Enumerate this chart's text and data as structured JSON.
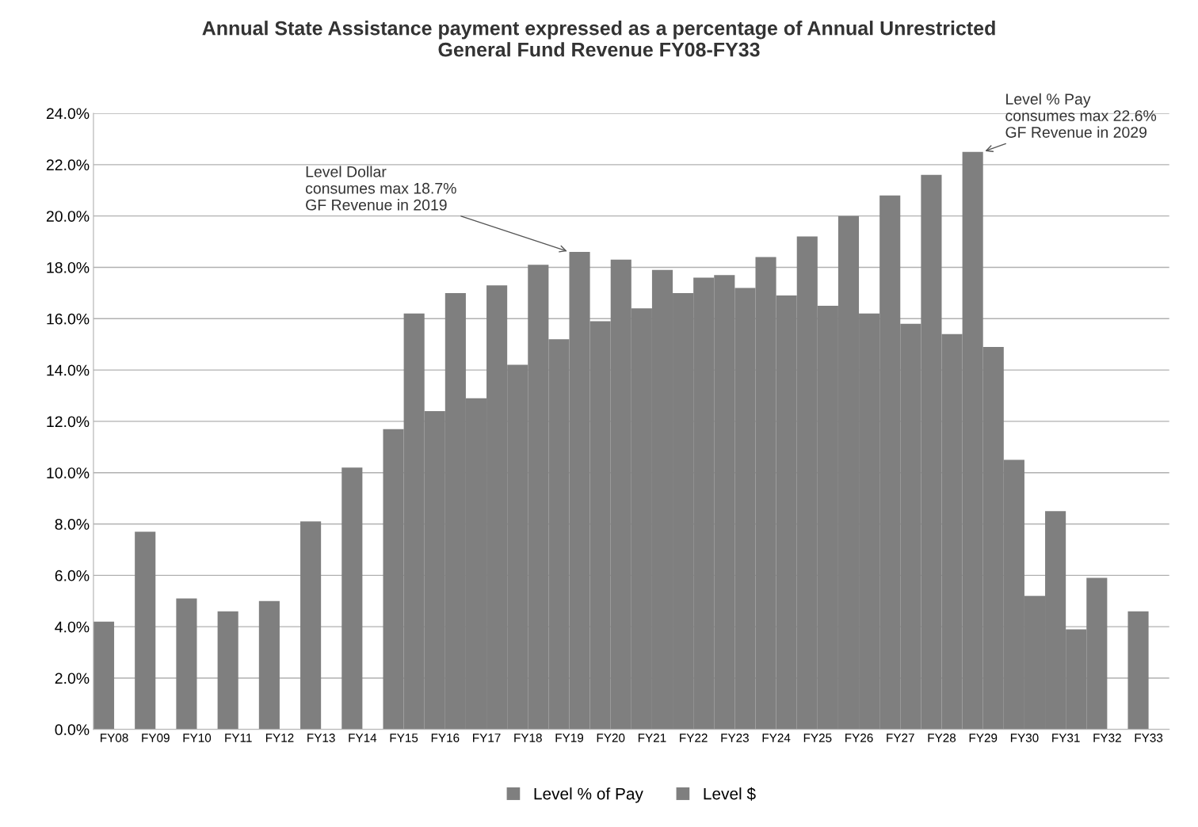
{
  "chart_data": {
    "type": "bar",
    "title": "Annual State Assistance payment expressed as a percentage of Annual Unrestricted\nGeneral Fund Revenue FY08-FY33",
    "categories": [
      "FY08",
      "FY09",
      "FY10",
      "FY11",
      "FY12",
      "FY13",
      "FY14",
      "FY15",
      "FY16",
      "FY17",
      "FY18",
      "FY19",
      "FY20",
      "FY21",
      "FY22",
      "FY23",
      "FY24",
      "FY25",
      "FY26",
      "FY27",
      "FY28",
      "FY29",
      "FY30",
      "FY31",
      "FY32",
      "FY33"
    ],
    "series": [
      {
        "name": "Level % of Pay",
        "color": "#7f7f7f",
        "values": [
          4.2,
          7.7,
          5.1,
          4.6,
          5.0,
          8.1,
          10.2,
          11.7,
          12.4,
          12.9,
          14.2,
          15.2,
          15.9,
          16.4,
          17.0,
          17.7,
          18.4,
          19.2,
          20.0,
          20.8,
          21.6,
          22.5,
          10.5,
          8.5,
          5.9,
          4.6
        ]
      },
      {
        "name": "Level $",
        "color": "#7f7f7f",
        "values": [
          null,
          null,
          null,
          null,
          null,
          null,
          null,
          16.2,
          17.0,
          17.3,
          18.1,
          18.6,
          18.3,
          17.9,
          17.6,
          17.2,
          16.9,
          16.5,
          16.2,
          15.8,
          15.4,
          14.9,
          5.2,
          3.9,
          null,
          null
        ]
      }
    ],
    "ylim": [
      0,
      24
    ],
    "yticks": [
      {
        "value": 0,
        "label": "0.0%"
      },
      {
        "value": 2,
        "label": "2.0%"
      },
      {
        "value": 4,
        "label": "4.0%"
      },
      {
        "value": 6,
        "label": "6.0%"
      },
      {
        "value": 8,
        "label": "8.0%"
      },
      {
        "value": 10,
        "label": "10.0%"
      },
      {
        "value": 12,
        "label": "12.0%"
      },
      {
        "value": 14,
        "label": "14.0%"
      },
      {
        "value": 16,
        "label": "16.0%"
      },
      {
        "value": 18,
        "label": "18.0%"
      },
      {
        "value": 20,
        "label": "20.0%"
      },
      {
        "value": 22,
        "label": "22.0%"
      },
      {
        "value": 24,
        "label": "24.0%"
      }
    ],
    "grid": "y",
    "legend": "bottom",
    "annotations": [
      {
        "text": "Level Dollar\nconsumes max 18.7%\nGF Revenue in 2019",
        "x": "FY19",
        "y": 18.6
      },
      {
        "text": "Level % Pay\nconsumes max 22.6%\nGF Revenue in 2029",
        "x": "FY29",
        "y": 22.5
      }
    ]
  }
}
